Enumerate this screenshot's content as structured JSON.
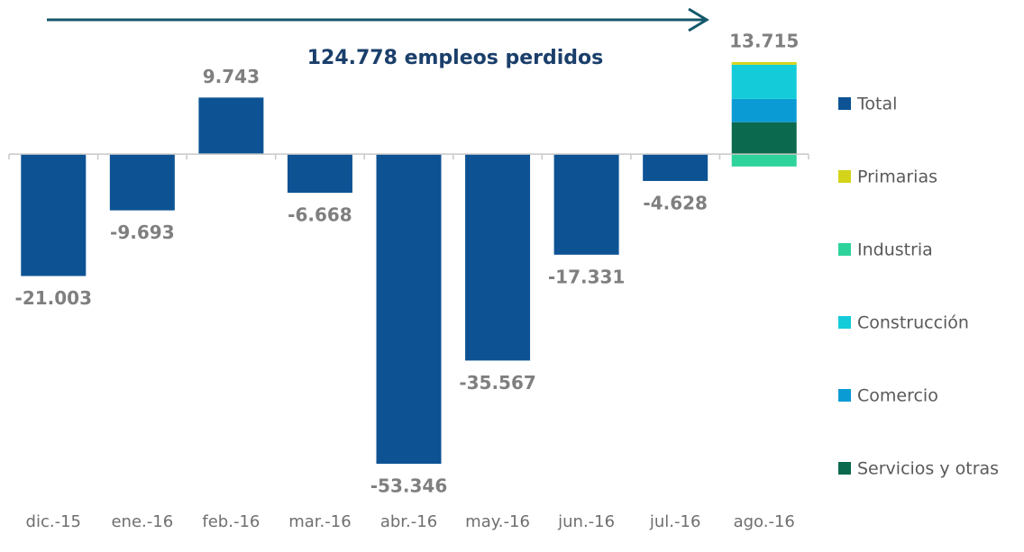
{
  "chart_data": {
    "type": "bar",
    "annotation": "124.778 empleos perdidos",
    "categories": [
      "dic.-15",
      "ene.-16",
      "feb.-16",
      "mar.-16",
      "abr.-16",
      "may.-16",
      "jun.-16",
      "jul.-16",
      "ago.-16"
    ],
    "series": [
      {
        "name": "Total",
        "color": "#0d5394",
        "values": [
          -21003,
          -9693,
          9743,
          -6668,
          -53346,
          -35567,
          -17331,
          -4628,
          13715
        ],
        "value_labels": [
          "-21.003",
          "-9.693",
          "9.743",
          "-6.668",
          "-53.346",
          "-35.567",
          "-17.331",
          "-4.628",
          "13.715"
        ]
      },
      {
        "name": "Primarias",
        "color": "#d4d41a",
        "values": [
          null,
          null,
          null,
          null,
          null,
          null,
          null,
          null,
          450
        ]
      },
      {
        "name": "Industria",
        "color": "#2ed39b",
        "values": [
          null,
          null,
          null,
          null,
          null,
          null,
          null,
          null,
          -2135
        ]
      },
      {
        "name": "Construcción",
        "color": "#14ccd9",
        "values": [
          null,
          null,
          null,
          null,
          null,
          null,
          null,
          null,
          5900
        ]
      },
      {
        "name": "Comercio",
        "color": "#0b9bd4",
        "values": [
          null,
          null,
          null,
          null,
          null,
          null,
          null,
          null,
          4000
        ]
      },
      {
        "name": "Servicios y otras",
        "color": "#0b6a4e",
        "values": [
          null,
          null,
          null,
          null,
          null,
          null,
          null,
          null,
          5500
        ]
      }
    ],
    "ylim": [
      -58000,
      16000
    ],
    "legend": "right",
    "grid": false
  }
}
